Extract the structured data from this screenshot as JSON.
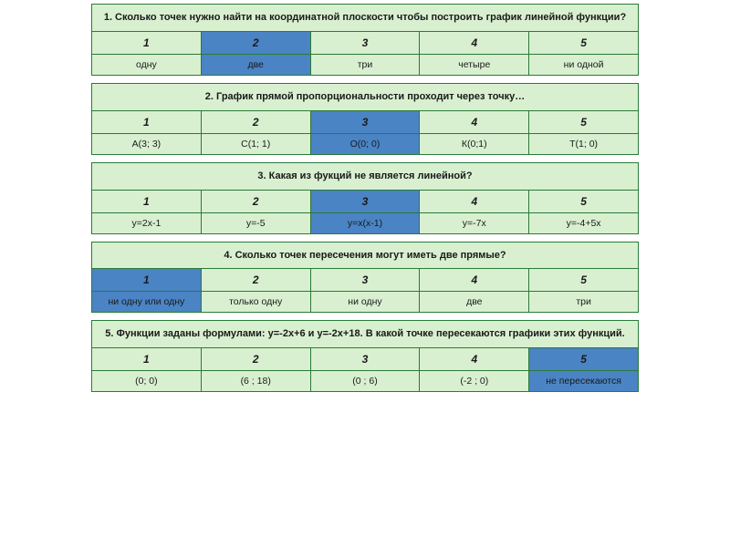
{
  "colors": {
    "cell_bg": "#d8f0d0",
    "highlight_bg": "#4a84c4",
    "border": "#2a7a3a",
    "text": "#1a1a1a",
    "page_bg": "#ffffff"
  },
  "typography": {
    "font_family": "Tahoma, Arial, sans-serif",
    "title_size": 11,
    "number_size": 12,
    "answer_size": 10.5
  },
  "col_count": 5,
  "numbers": [
    "1",
    "2",
    "3",
    "4",
    "5"
  ],
  "questions": [
    {
      "title": "1. Сколько точек нужно найти на координатной плоскости чтобы построить график линейной функции?",
      "answers": [
        "одну",
        "две",
        "три",
        "четыре",
        "ни одной"
      ],
      "highlight_number_index": 1,
      "highlight_answer_index": 1
    },
    {
      "title": "2. График прямой пропорциональности проходит через точку…",
      "answers": [
        "А(3; 3)",
        "С(1; 1)",
        "О(0; 0)",
        "К(0;1)",
        "Т(1; 0)"
      ],
      "highlight_number_index": 2,
      "highlight_answer_index": 2
    },
    {
      "title": "3. Какая из фукций не является линейной?",
      "answers": [
        "y=2x-1",
        "y=-5",
        "y=x(x-1)",
        "y=-7x",
        "y=-4+5x"
      ],
      "highlight_number_index": 2,
      "highlight_answer_index": 2
    },
    {
      "title": "4.  Сколько точек пересечения могут иметь две прямые?",
      "answers": [
        "ни одну или одну",
        "только одну",
        "ни одну",
        "две",
        "три"
      ],
      "highlight_number_index": 0,
      "highlight_answer_index": 0
    },
    {
      "title": "5. Функции заданы формулами: y=-2x+6  и  y=-2x+18. В какой точке пересекаются графики этих функций.",
      "answers": [
        "(0; 0)",
        "(6 ; 18)",
        "(0 ; 6)",
        "(-2 ; 0)",
        "не пересекаются"
      ],
      "highlight_number_index": 4,
      "highlight_answer_index": 4
    }
  ]
}
